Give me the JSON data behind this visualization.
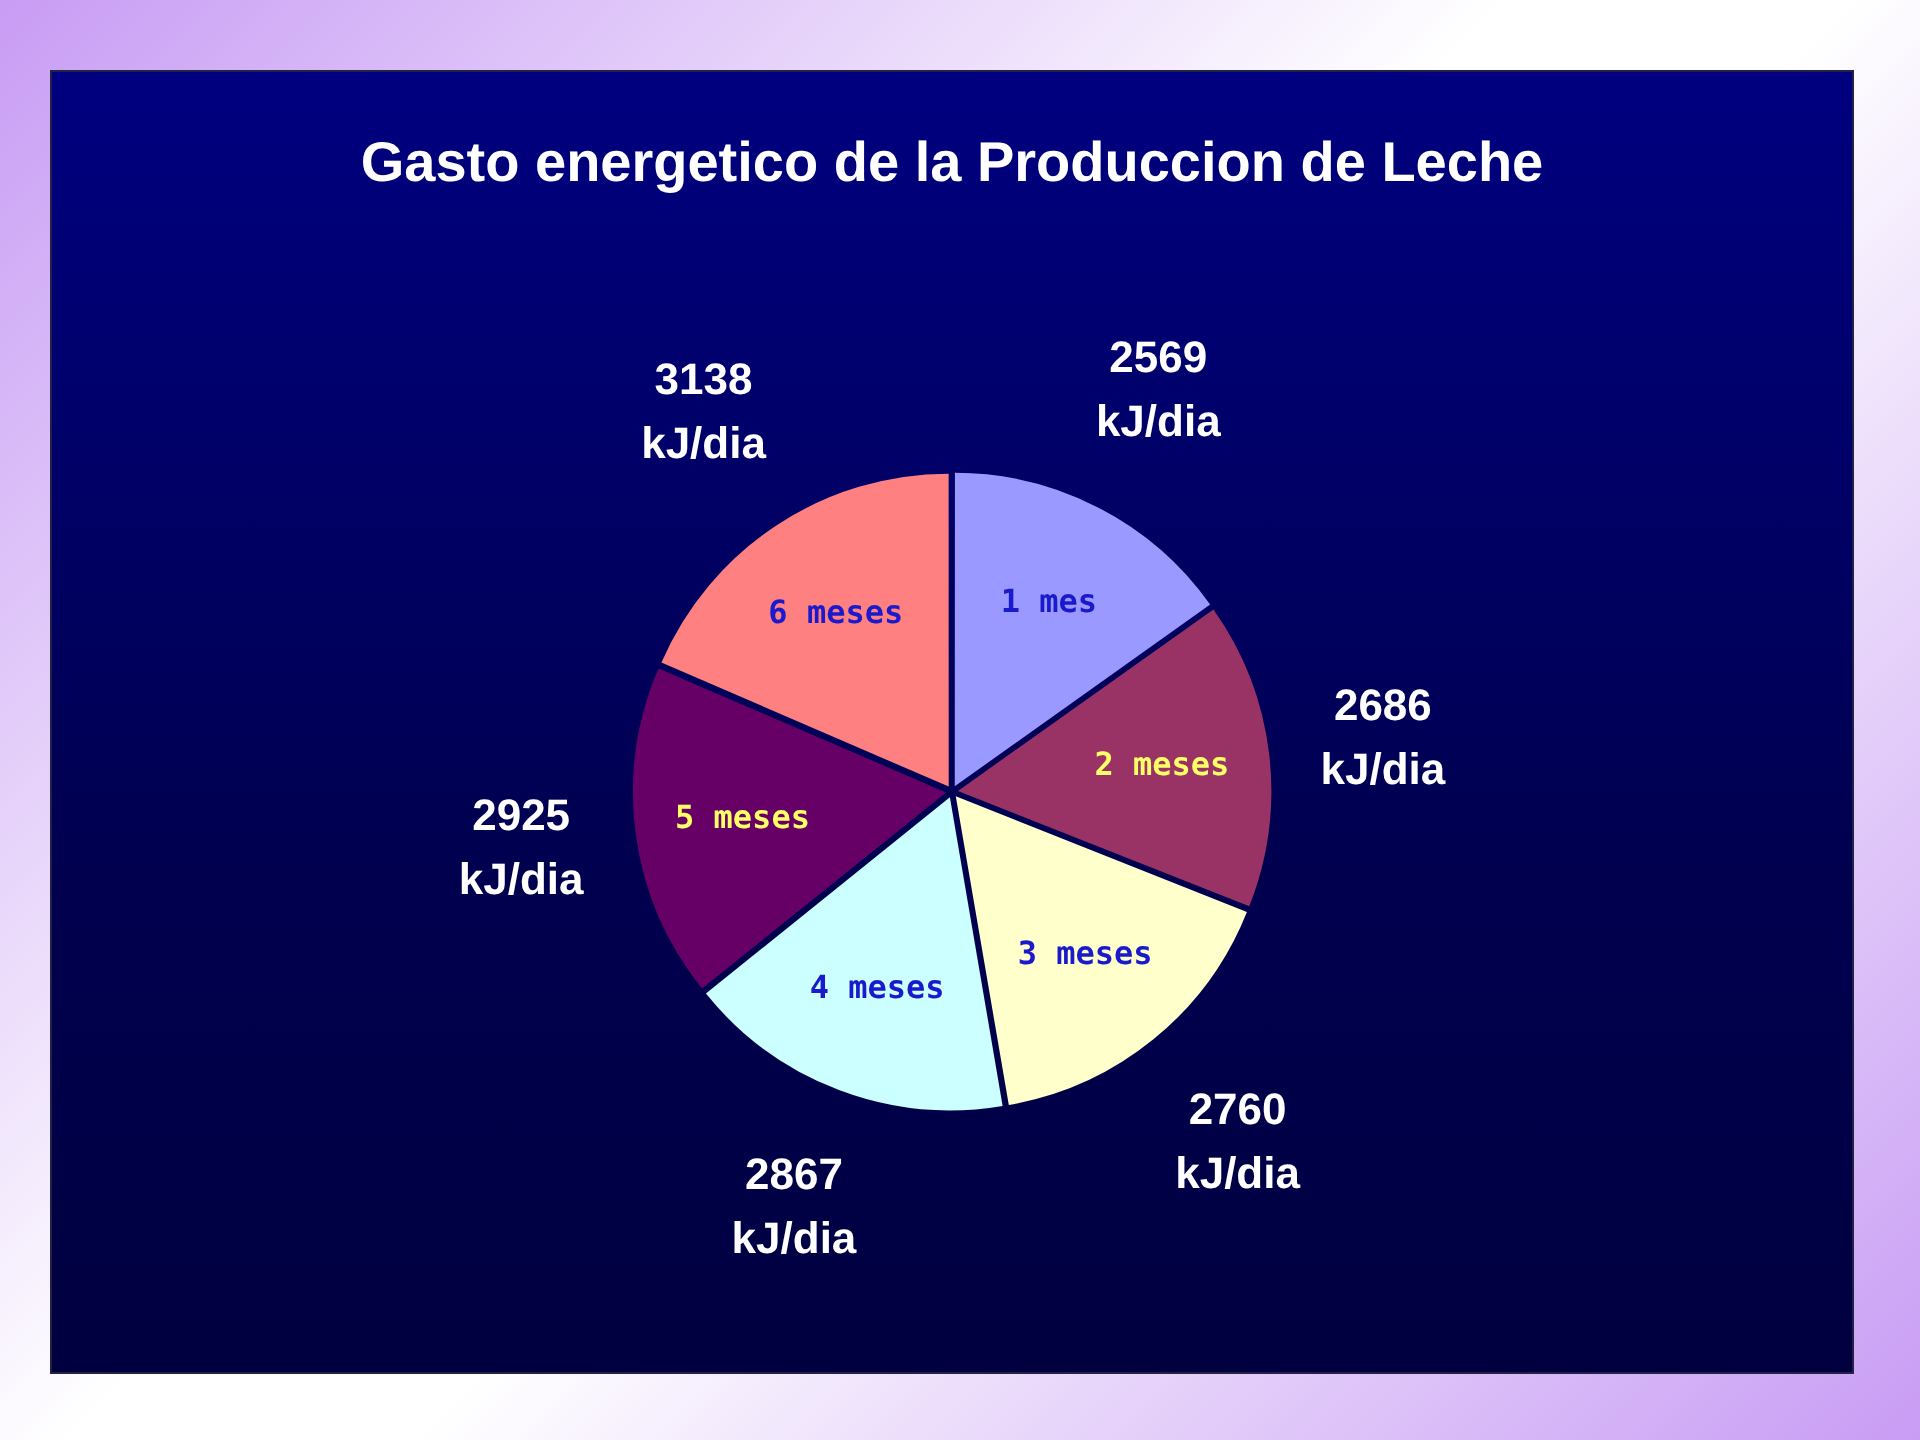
{
  "chart_data": {
    "type": "pie",
    "title": "Gasto energetico de la Produccion de Leche",
    "categories": [
      "1 mes",
      "2 meses",
      "3 meses",
      "4 meses",
      "5 meses",
      "6 meses"
    ],
    "values": [
      2569,
      2686,
      2760,
      2867,
      2925,
      3138
    ],
    "colors": [
      "#9999ff",
      "#993366",
      "#ffffcc",
      "#ccffff",
      "#660066",
      "#ff8080"
    ],
    "value_labels": [
      "2569 kJ/dia",
      "2686 kJ/dia",
      "2760 kJ/dia",
      "2867 kJ/dia",
      "2925 kJ/dia",
      "3138 kJ/dia"
    ],
    "legend": false
  }
}
